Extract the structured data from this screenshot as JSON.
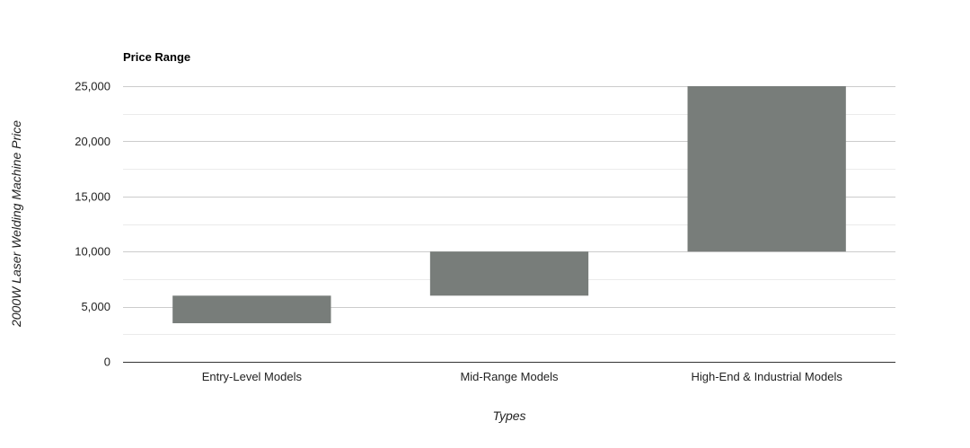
{
  "chart_data": {
    "type": "bar",
    "title": "Price Range",
    "xlabel": "Types",
    "ylabel": "2000W Laser Welding Machine Price",
    "categories": [
      "Entry-Level Models",
      "Mid-Range Models",
      "High-End & Industrial Models"
    ],
    "ranges": [
      {
        "low": 3500,
        "high": 6000
      },
      {
        "low": 6000,
        "high": 10000
      },
      {
        "low": 10000,
        "high": 25000
      }
    ],
    "ylim": [
      0,
      25000
    ],
    "yticks": [
      0,
      5000,
      10000,
      15000,
      20000,
      25000
    ],
    "ytick_labels": [
      "0",
      "5,000",
      "10,000",
      "15,000",
      "20,000",
      "25,000"
    ],
    "grid": true,
    "legend": "none",
    "colors": {
      "bar": "#787d7a",
      "grid_major": "#cccccc",
      "grid_minor": "#ebebeb",
      "axis": "#333333"
    }
  }
}
